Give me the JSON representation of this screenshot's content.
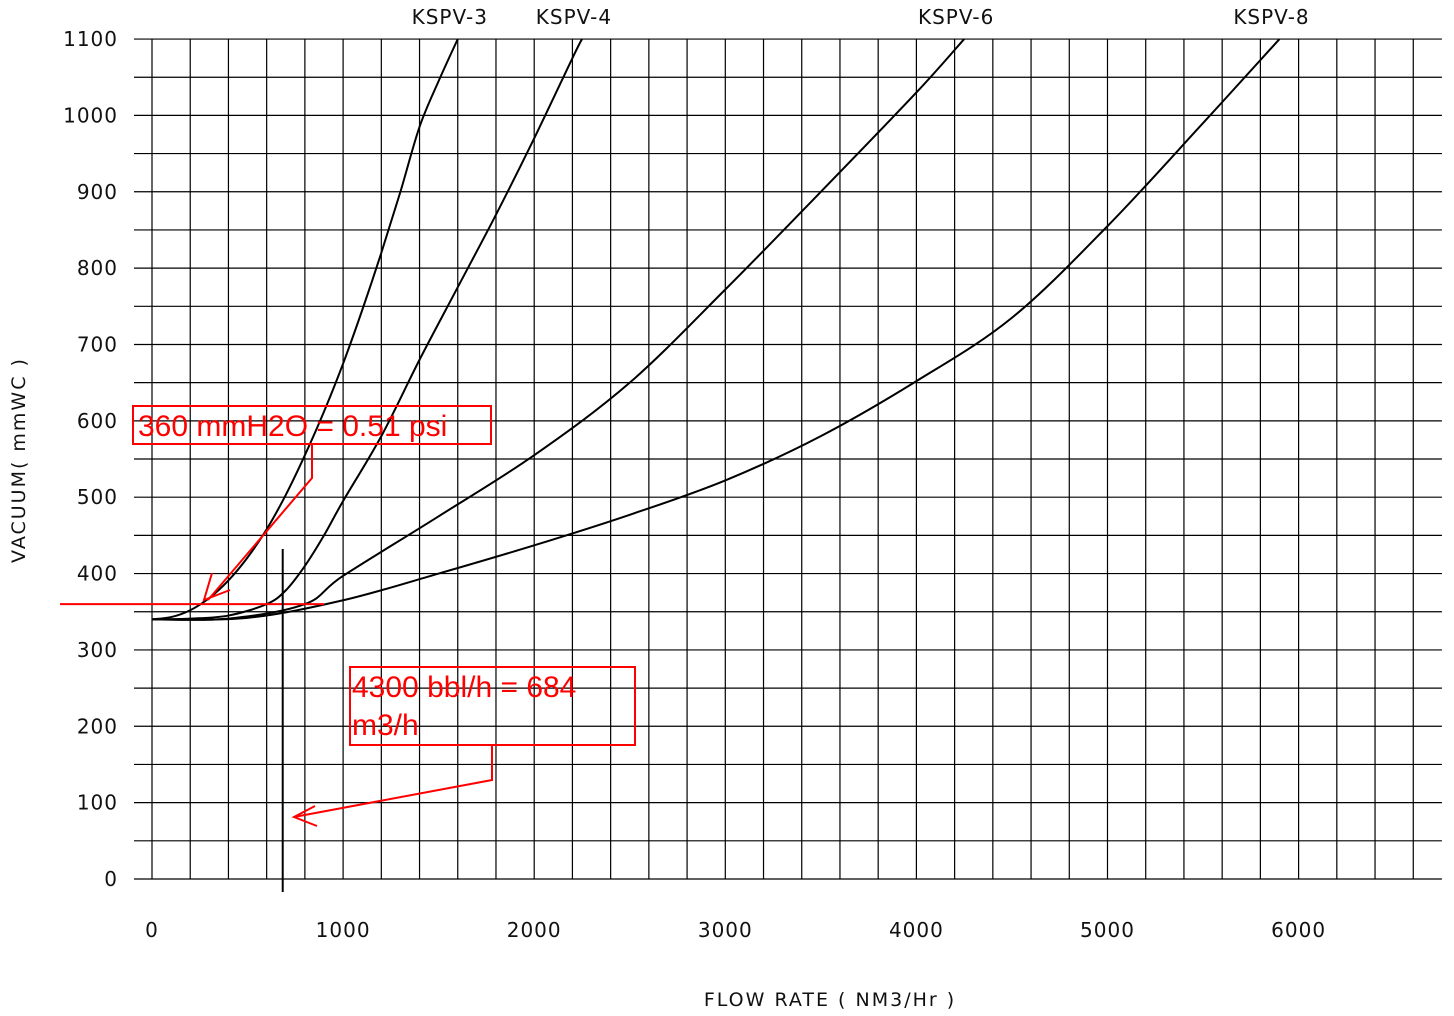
{
  "chart_data": {
    "type": "line",
    "xlabel": "FLOW RATE ( NM3/Hr )",
    "ylabel": "VACUUM( mmWC )",
    "xlim": [
      0,
      6750
    ],
    "ylim": [
      0,
      1100
    ],
    "x_ticks": [
      "0",
      "1000",
      "2000",
      "3000",
      "4000",
      "5000",
      "6000"
    ],
    "y_ticks": [
      "0",
      "100",
      "200",
      "300",
      "400",
      "500",
      "600",
      "700",
      "800",
      "900",
      "1000",
      "1100"
    ],
    "grid": true,
    "series": [
      {
        "name": "KSPV-3",
        "x": [
          0,
          100,
          200,
          300,
          400,
          500,
          600,
          700,
          800,
          900,
          1000,
          1100,
          1200,
          1300,
          1400,
          1500,
          1600
        ],
        "y": [
          340,
          343,
          352,
          368,
          391,
          421,
          458,
          503,
          555,
          612,
          675,
          745,
          820,
          900,
          985,
          1045,
          1100
        ]
      },
      {
        "name": "KSPV-4",
        "x": [
          0,
          200,
          400,
          600,
          700,
          800,
          900,
          1000,
          1200,
          1400,
          1600,
          1800,
          2000,
          2200,
          2250
        ],
        "y": [
          340,
          341,
          345,
          360,
          378,
          410,
          450,
          495,
          580,
          680,
          775,
          870,
          970,
          1075,
          1100
        ]
      },
      {
        "name": "KSPV-6",
        "x": [
          0,
          400,
          800,
          1000,
          1500,
          2000,
          2500,
          3000,
          3500,
          4000,
          4250
        ],
        "y": [
          340,
          341,
          360,
          397,
          475,
          555,
          650,
          772,
          900,
          1030,
          1100
        ]
      },
      {
        "name": "KSPV-8",
        "x": [
          0,
          500,
          1000,
          1500,
          2000,
          2500,
          3000,
          3500,
          4000,
          4500,
          5000,
          5500,
          5900
        ],
        "y": [
          340,
          342,
          365,
          400,
          437,
          477,
          522,
          580,
          652,
          735,
          855,
          990,
          1100
        ]
      }
    ],
    "annotations": [
      {
        "text": "360 mmH2O = 0.51 psi",
        "color": "#ff0000"
      },
      {
        "text_lines": [
          "4300 bbl/h = 684",
          "m3/h"
        ],
        "color": "#ff0000"
      }
    ],
    "reference_lines": {
      "horizontal_y": 360,
      "vertical_x": 684,
      "color": "#ff0000"
    }
  }
}
